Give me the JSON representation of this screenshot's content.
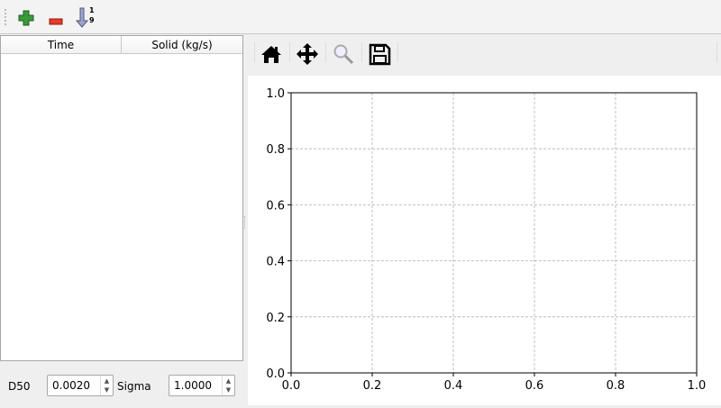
{
  "toolbar": {
    "buttons": [
      {
        "name": "add-row",
        "icon": "green-plus-icon"
      },
      {
        "name": "remove-row",
        "icon": "red-minus-icon"
      },
      {
        "name": "sort",
        "icon": "sort-descending-icon",
        "label_top": "1",
        "label_bottom": "9"
      }
    ]
  },
  "table": {
    "columns": [
      "Time",
      "Solid (kg/s)"
    ],
    "rows": []
  },
  "params": {
    "d50_label": "D50",
    "d50_value": "0.0020",
    "sigma_label": "Sigma",
    "sigma_value": "1.0000"
  },
  "plot_toolbar": {
    "buttons": [
      "home-icon",
      "pan-icon",
      "zoom-icon",
      "save-icon"
    ]
  },
  "chart_data": {
    "type": "line",
    "series": [],
    "xlim": [
      0,
      1
    ],
    "ylim": [
      0,
      1
    ],
    "xticks": [
      "0.0",
      "0.2",
      "0.4",
      "0.6",
      "0.8",
      "1.0"
    ],
    "yticks": [
      "0.0",
      "0.2",
      "0.4",
      "0.6",
      "0.8",
      "1.0"
    ],
    "grid": true,
    "grid_color": "#b0b0b0"
  }
}
